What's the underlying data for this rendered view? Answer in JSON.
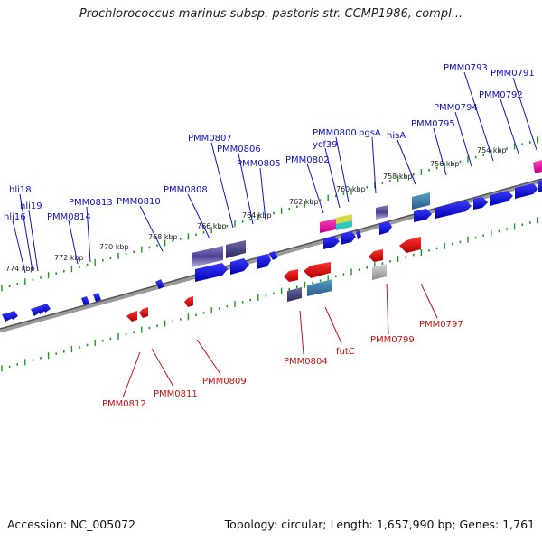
{
  "header": {
    "title": "Prochlorococcus marinus subsp. pastoris str. CCMP1986, compl..."
  },
  "footer": {
    "accession": "Accession: NC_005072",
    "topology": "Topology: circular; Length: 1,657,990 bp; Genes: 1,761"
  },
  "scale_labels": [
    "774 kbp",
    "772 kbp",
    "770 kbp",
    "768 kbp",
    "766 kbp",
    "764 kbp",
    "762 kbp",
    "760 kbp",
    "758 kbp",
    "756 kbp",
    "754 kbp"
  ],
  "top_genes": [
    "hli18",
    "hli19",
    "hli16",
    "PMM0814",
    "PMM0813",
    "PMM0810",
    "PMM0808",
    "PMM0807",
    "PMM0806",
    "PMM0805",
    "PMM0802",
    "ycf39",
    "PMM0800",
    "pgsA",
    "hisA",
    "PMM0795",
    "PMM0794",
    "PMM0793",
    "PMM0792",
    "PMM0791"
  ],
  "bottom_genes": [
    "PMM0812",
    "PMM0811",
    "PMM0809",
    "PMM0804",
    "futC",
    "PMM0799",
    "PMM0797"
  ],
  "colors": {
    "forward": "#1a1adc",
    "reverse": "#e01010",
    "backbone": "#7a7a7a",
    "tick": "#1a9a1a"
  }
}
